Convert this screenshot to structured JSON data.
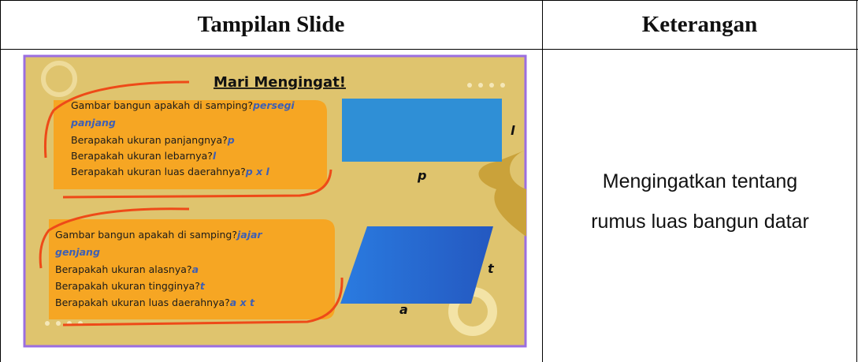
{
  "table": {
    "headers": [
      "Tampilan Slide",
      "Keterangan"
    ],
    "rows": [
      [
        {
          "slide": {
            "title": "Mari Mengingat!",
            "block1": [
              {
                "q": "Gambar bangun apakah di samping?",
                "a": "persegi"
              },
              {
                "q": "",
                "a": "panjang"
              },
              {
                "q": "Berapakah ukuran panjangnya?",
                "a": "p"
              },
              {
                "q": "Berapakah ukuran lebarnya?",
                "a": "l"
              },
              {
                "q": "Berapakah ukuran luas daerahnya?",
                "a": "p x l"
              }
            ],
            "shape1_labels": {
              "side": "l",
              "bottom": "p"
            },
            "block2": [
              {
                "q": "Gambar bangun apakah di samping?",
                "a": "jajar"
              },
              {
                "q": "",
                "a": "genjang"
              },
              {
                "q": "Berapakah ukuran alasnya?",
                "a": "a"
              },
              {
                "q": "Berapakah ukuran tingginya?",
                "a": "t"
              },
              {
                "q": "Berapakah ukuran luas daerahnya?",
                "a": "a x t"
              }
            ],
            "shape2_labels": {
              "side": "t",
              "bottom": "a"
            }
          }
        },
        {
          "lines": [
            "Mengingatkan tentang",
            "rumus luas bangun datar"
          ]
        }
      ]
    ]
  }
}
